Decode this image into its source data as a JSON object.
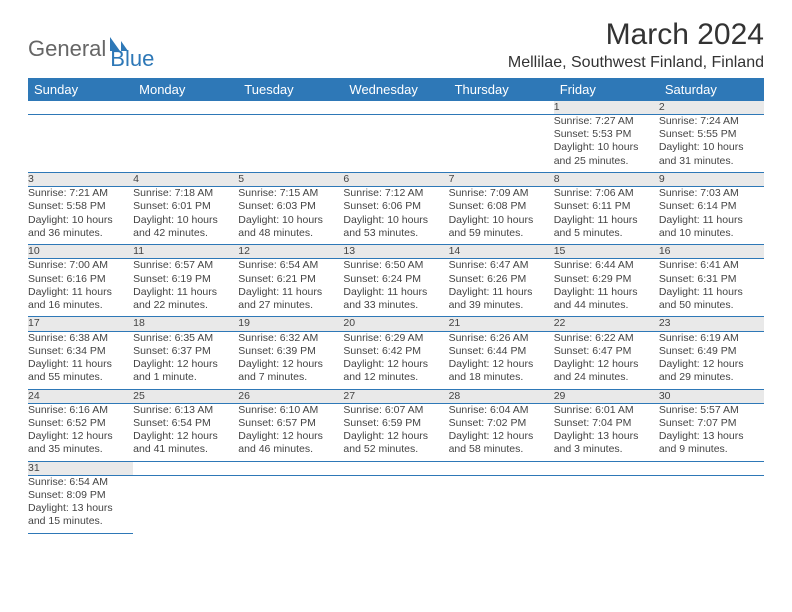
{
  "logo": {
    "text1": "General",
    "text2": "Blue"
  },
  "title": "March 2024",
  "location": "Mellilae, Southwest Finland, Finland",
  "dayHeaders": [
    "Sunday",
    "Monday",
    "Tuesday",
    "Wednesday",
    "Thursday",
    "Friday",
    "Saturday"
  ],
  "colors": {
    "headerBg": "#2e78b7",
    "headerText": "#ffffff",
    "dayNumBg": "#e9e9e9",
    "rowBorder": "#2e78b7",
    "logoGeneral": "#666666",
    "logoBlue": "#2e78b7",
    "bodyText": "#444444"
  },
  "weeks": [
    [
      null,
      null,
      null,
      null,
      null,
      {
        "n": "1",
        "sr": "Sunrise: 7:27 AM",
        "ss": "Sunset: 5:53 PM",
        "d1": "Daylight: 10 hours",
        "d2": "and 25 minutes."
      },
      {
        "n": "2",
        "sr": "Sunrise: 7:24 AM",
        "ss": "Sunset: 5:55 PM",
        "d1": "Daylight: 10 hours",
        "d2": "and 31 minutes."
      }
    ],
    [
      {
        "n": "3",
        "sr": "Sunrise: 7:21 AM",
        "ss": "Sunset: 5:58 PM",
        "d1": "Daylight: 10 hours",
        "d2": "and 36 minutes."
      },
      {
        "n": "4",
        "sr": "Sunrise: 7:18 AM",
        "ss": "Sunset: 6:01 PM",
        "d1": "Daylight: 10 hours",
        "d2": "and 42 minutes."
      },
      {
        "n": "5",
        "sr": "Sunrise: 7:15 AM",
        "ss": "Sunset: 6:03 PM",
        "d1": "Daylight: 10 hours",
        "d2": "and 48 minutes."
      },
      {
        "n": "6",
        "sr": "Sunrise: 7:12 AM",
        "ss": "Sunset: 6:06 PM",
        "d1": "Daylight: 10 hours",
        "d2": "and 53 minutes."
      },
      {
        "n": "7",
        "sr": "Sunrise: 7:09 AM",
        "ss": "Sunset: 6:08 PM",
        "d1": "Daylight: 10 hours",
        "d2": "and 59 minutes."
      },
      {
        "n": "8",
        "sr": "Sunrise: 7:06 AM",
        "ss": "Sunset: 6:11 PM",
        "d1": "Daylight: 11 hours",
        "d2": "and 5 minutes."
      },
      {
        "n": "9",
        "sr": "Sunrise: 7:03 AM",
        "ss": "Sunset: 6:14 PM",
        "d1": "Daylight: 11 hours",
        "d2": "and 10 minutes."
      }
    ],
    [
      {
        "n": "10",
        "sr": "Sunrise: 7:00 AM",
        "ss": "Sunset: 6:16 PM",
        "d1": "Daylight: 11 hours",
        "d2": "and 16 minutes."
      },
      {
        "n": "11",
        "sr": "Sunrise: 6:57 AM",
        "ss": "Sunset: 6:19 PM",
        "d1": "Daylight: 11 hours",
        "d2": "and 22 minutes."
      },
      {
        "n": "12",
        "sr": "Sunrise: 6:54 AM",
        "ss": "Sunset: 6:21 PM",
        "d1": "Daylight: 11 hours",
        "d2": "and 27 minutes."
      },
      {
        "n": "13",
        "sr": "Sunrise: 6:50 AM",
        "ss": "Sunset: 6:24 PM",
        "d1": "Daylight: 11 hours",
        "d2": "and 33 minutes."
      },
      {
        "n": "14",
        "sr": "Sunrise: 6:47 AM",
        "ss": "Sunset: 6:26 PM",
        "d1": "Daylight: 11 hours",
        "d2": "and 39 minutes."
      },
      {
        "n": "15",
        "sr": "Sunrise: 6:44 AM",
        "ss": "Sunset: 6:29 PM",
        "d1": "Daylight: 11 hours",
        "d2": "and 44 minutes."
      },
      {
        "n": "16",
        "sr": "Sunrise: 6:41 AM",
        "ss": "Sunset: 6:31 PM",
        "d1": "Daylight: 11 hours",
        "d2": "and 50 minutes."
      }
    ],
    [
      {
        "n": "17",
        "sr": "Sunrise: 6:38 AM",
        "ss": "Sunset: 6:34 PM",
        "d1": "Daylight: 11 hours",
        "d2": "and 55 minutes."
      },
      {
        "n": "18",
        "sr": "Sunrise: 6:35 AM",
        "ss": "Sunset: 6:37 PM",
        "d1": "Daylight: 12 hours",
        "d2": "and 1 minute."
      },
      {
        "n": "19",
        "sr": "Sunrise: 6:32 AM",
        "ss": "Sunset: 6:39 PM",
        "d1": "Daylight: 12 hours",
        "d2": "and 7 minutes."
      },
      {
        "n": "20",
        "sr": "Sunrise: 6:29 AM",
        "ss": "Sunset: 6:42 PM",
        "d1": "Daylight: 12 hours",
        "d2": "and 12 minutes."
      },
      {
        "n": "21",
        "sr": "Sunrise: 6:26 AM",
        "ss": "Sunset: 6:44 PM",
        "d1": "Daylight: 12 hours",
        "d2": "and 18 minutes."
      },
      {
        "n": "22",
        "sr": "Sunrise: 6:22 AM",
        "ss": "Sunset: 6:47 PM",
        "d1": "Daylight: 12 hours",
        "d2": "and 24 minutes."
      },
      {
        "n": "23",
        "sr": "Sunrise: 6:19 AM",
        "ss": "Sunset: 6:49 PM",
        "d1": "Daylight: 12 hours",
        "d2": "and 29 minutes."
      }
    ],
    [
      {
        "n": "24",
        "sr": "Sunrise: 6:16 AM",
        "ss": "Sunset: 6:52 PM",
        "d1": "Daylight: 12 hours",
        "d2": "and 35 minutes."
      },
      {
        "n": "25",
        "sr": "Sunrise: 6:13 AM",
        "ss": "Sunset: 6:54 PM",
        "d1": "Daylight: 12 hours",
        "d2": "and 41 minutes."
      },
      {
        "n": "26",
        "sr": "Sunrise: 6:10 AM",
        "ss": "Sunset: 6:57 PM",
        "d1": "Daylight: 12 hours",
        "d2": "and 46 minutes."
      },
      {
        "n": "27",
        "sr": "Sunrise: 6:07 AM",
        "ss": "Sunset: 6:59 PM",
        "d1": "Daylight: 12 hours",
        "d2": "and 52 minutes."
      },
      {
        "n": "28",
        "sr": "Sunrise: 6:04 AM",
        "ss": "Sunset: 7:02 PM",
        "d1": "Daylight: 12 hours",
        "d2": "and 58 minutes."
      },
      {
        "n": "29",
        "sr": "Sunrise: 6:01 AM",
        "ss": "Sunset: 7:04 PM",
        "d1": "Daylight: 13 hours",
        "d2": "and 3 minutes."
      },
      {
        "n": "30",
        "sr": "Sunrise: 5:57 AM",
        "ss": "Sunset: 7:07 PM",
        "d1": "Daylight: 13 hours",
        "d2": "and 9 minutes."
      }
    ],
    [
      {
        "n": "31",
        "sr": "Sunrise: 6:54 AM",
        "ss": "Sunset: 8:09 PM",
        "d1": "Daylight: 13 hours",
        "d2": "and 15 minutes."
      },
      null,
      null,
      null,
      null,
      null,
      null
    ]
  ]
}
